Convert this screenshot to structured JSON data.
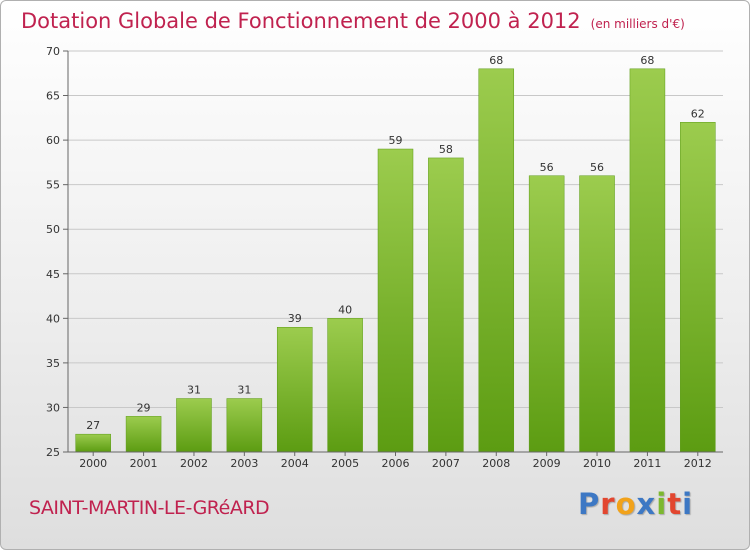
{
  "title": "Dotation Globale de Fonctionnement de 2000 à 2012",
  "subtitle": "(en milliers d'€)",
  "commune": "SAINT-MARTIN-LE-GRéARD",
  "logo": {
    "letters": [
      "P",
      "r",
      "o",
      "x",
      "i",
      "t",
      "i"
    ],
    "colors": [
      "#3d78c4",
      "#e2462f",
      "#f1a21a",
      "#3d78c4",
      "#7cb82f",
      "#e2462f",
      "#3d78c4"
    ]
  },
  "colors": {
    "bar_top": "#9ccc4e",
    "bar_bottom": "#5c9c12",
    "grid": "#c8c8c8",
    "text_accent": "#c0224f"
  },
  "chart_data": {
    "type": "bar",
    "categories": [
      "2000",
      "2001",
      "2002",
      "2003",
      "2004",
      "2005",
      "2006",
      "2007",
      "2008",
      "2009",
      "2010",
      "2011",
      "2012"
    ],
    "values": [
      27,
      29,
      31,
      31,
      39,
      40,
      59,
      58,
      68,
      56,
      56,
      68,
      62
    ],
    "title": "Dotation Globale de Fonctionnement de 2000 à 2012",
    "ylabel": "",
    "xlabel": "",
    "ylim": [
      25,
      70
    ],
    "yticks": [
      25,
      30,
      35,
      40,
      45,
      50,
      55,
      60,
      65,
      70
    ],
    "grid": true,
    "legend": "none"
  }
}
